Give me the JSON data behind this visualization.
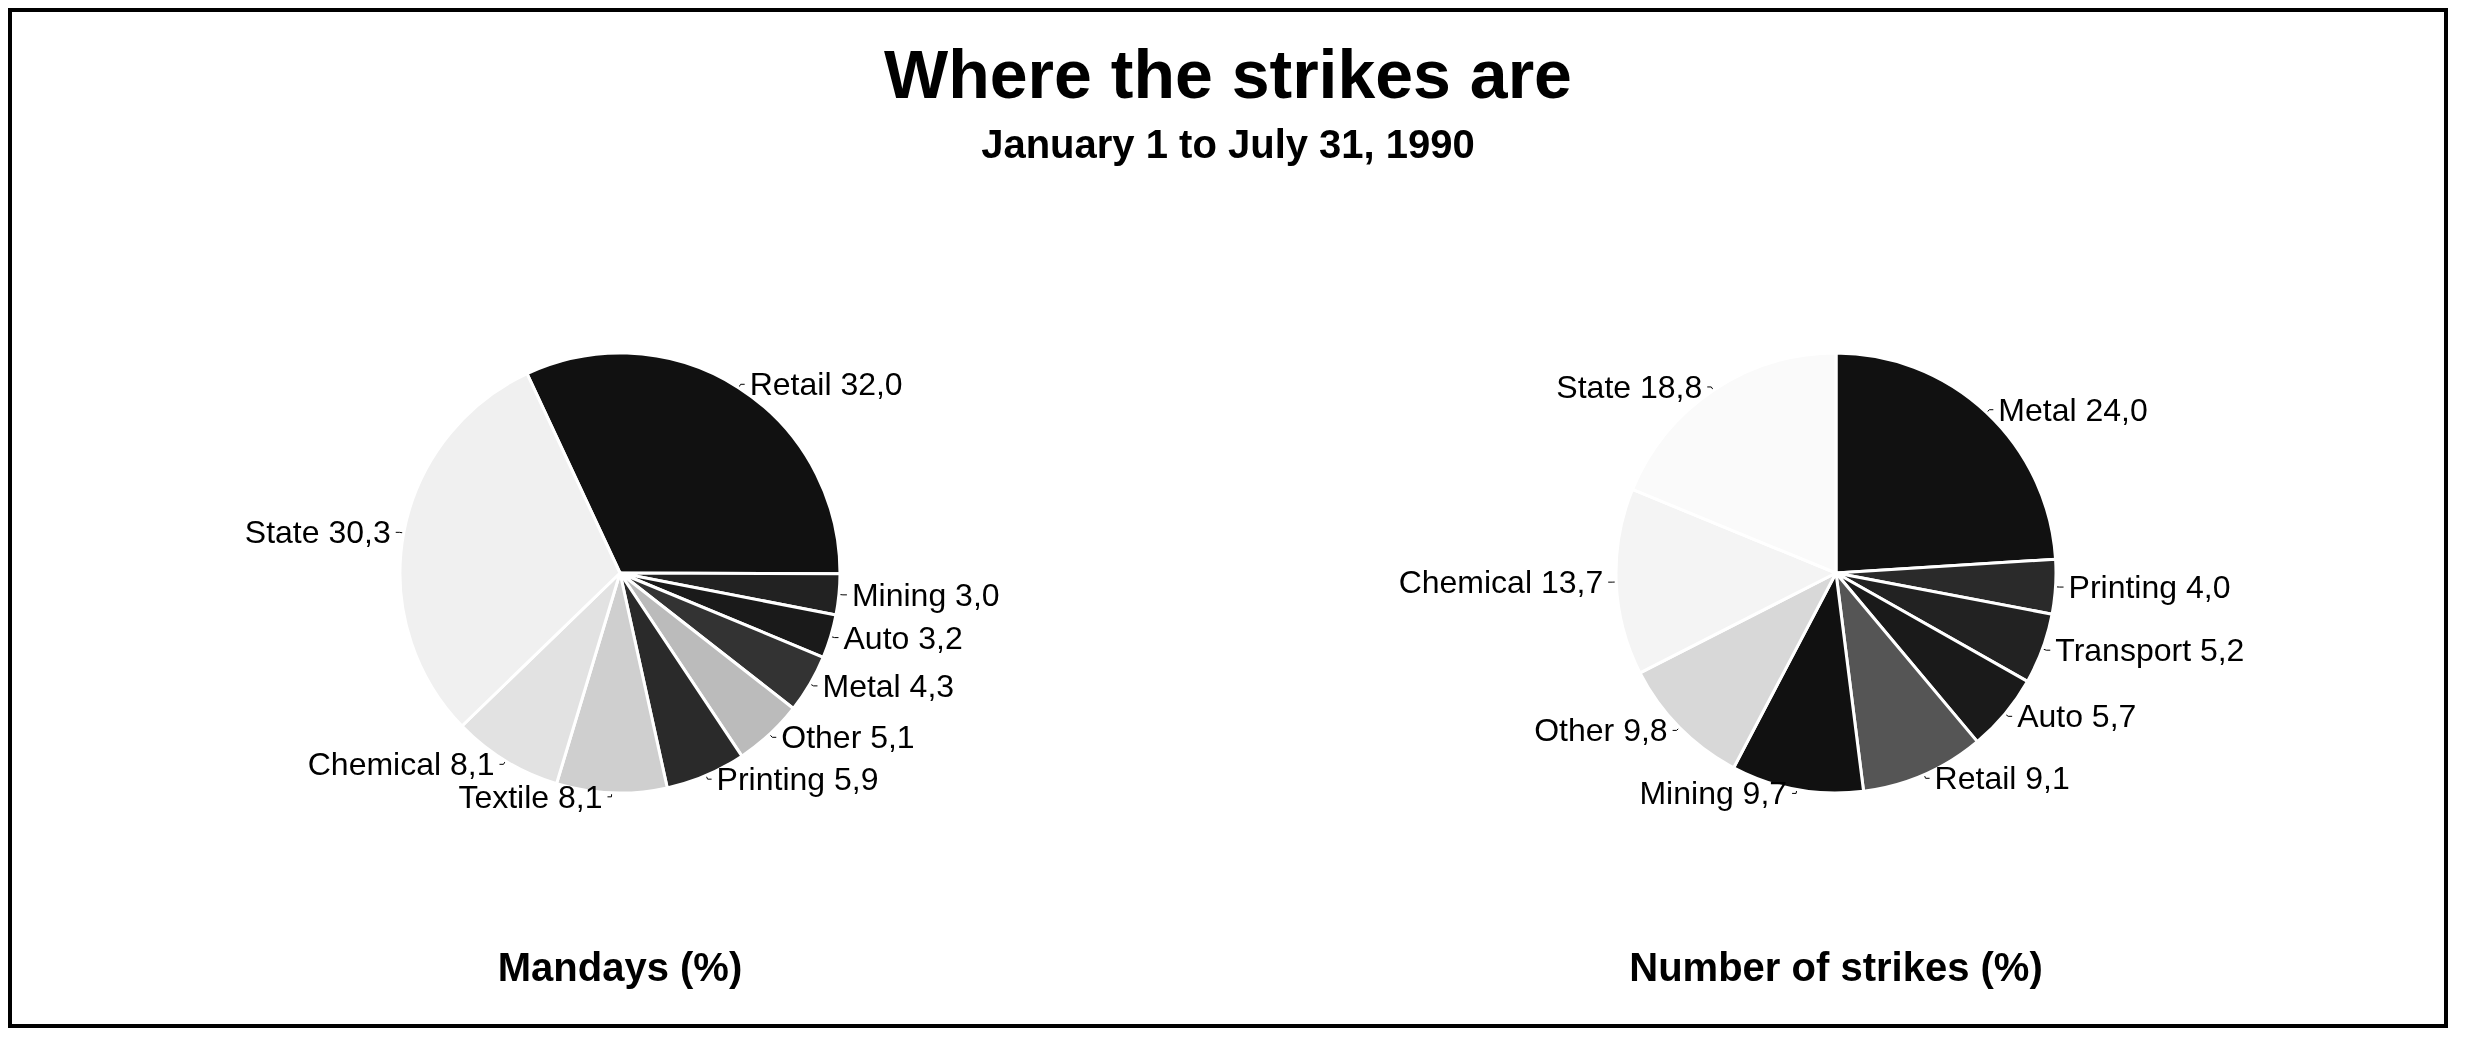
{
  "chart_data": [
    {
      "type": "other",
      "title": "Where the strikes are",
      "subtitle": "January 1 to July 31, 1990"
    },
    {
      "type": "pie",
      "title": "Mandays (%)",
      "categories": [
        "Retail",
        "Mining",
        "Auto",
        "Metal",
        "Other",
        "Printing",
        "Textile",
        "Chemical",
        "State"
      ],
      "values": [
        32.0,
        3.0,
        3.2,
        4.3,
        5.1,
        5.9,
        8.1,
        8.1,
        30.3
      ],
      "value_labels": [
        "32,0",
        "3,0",
        "3,2",
        "4,3",
        "5,1",
        "5,9",
        "8,1",
        "8,1",
        "30,3"
      ],
      "colors": [
        "#111111",
        "#222222",
        "#1a1a1a",
        "#333333",
        "#bbbbbb",
        "#2a2a2a",
        "#cfcfcf",
        "#e2e2e2",
        "#f0f0f0"
      ],
      "legend": false
    },
    {
      "type": "pie",
      "title": "Number of strikes (%)",
      "categories": [
        "Metal",
        "Printing",
        "Transport",
        "Auto",
        "Retail",
        "Mining",
        "Other",
        "Chemical",
        "State"
      ],
      "values": [
        24.0,
        4.0,
        5.2,
        5.7,
        9.1,
        9.7,
        9.8,
        13.7,
        18.8
      ],
      "value_labels": [
        "24,0",
        "4,0",
        "5,2",
        "5,7",
        "9,1",
        "9,7",
        "9,8",
        "13,7",
        "18,8"
      ],
      "colors": [
        "#111111",
        "#2a2a2a",
        "#222222",
        "#1a1a1a",
        "#555555",
        "#111111",
        "#d8d8d8",
        "#f4f4f4",
        "#fafafa"
      ],
      "legend": false
    }
  ]
}
